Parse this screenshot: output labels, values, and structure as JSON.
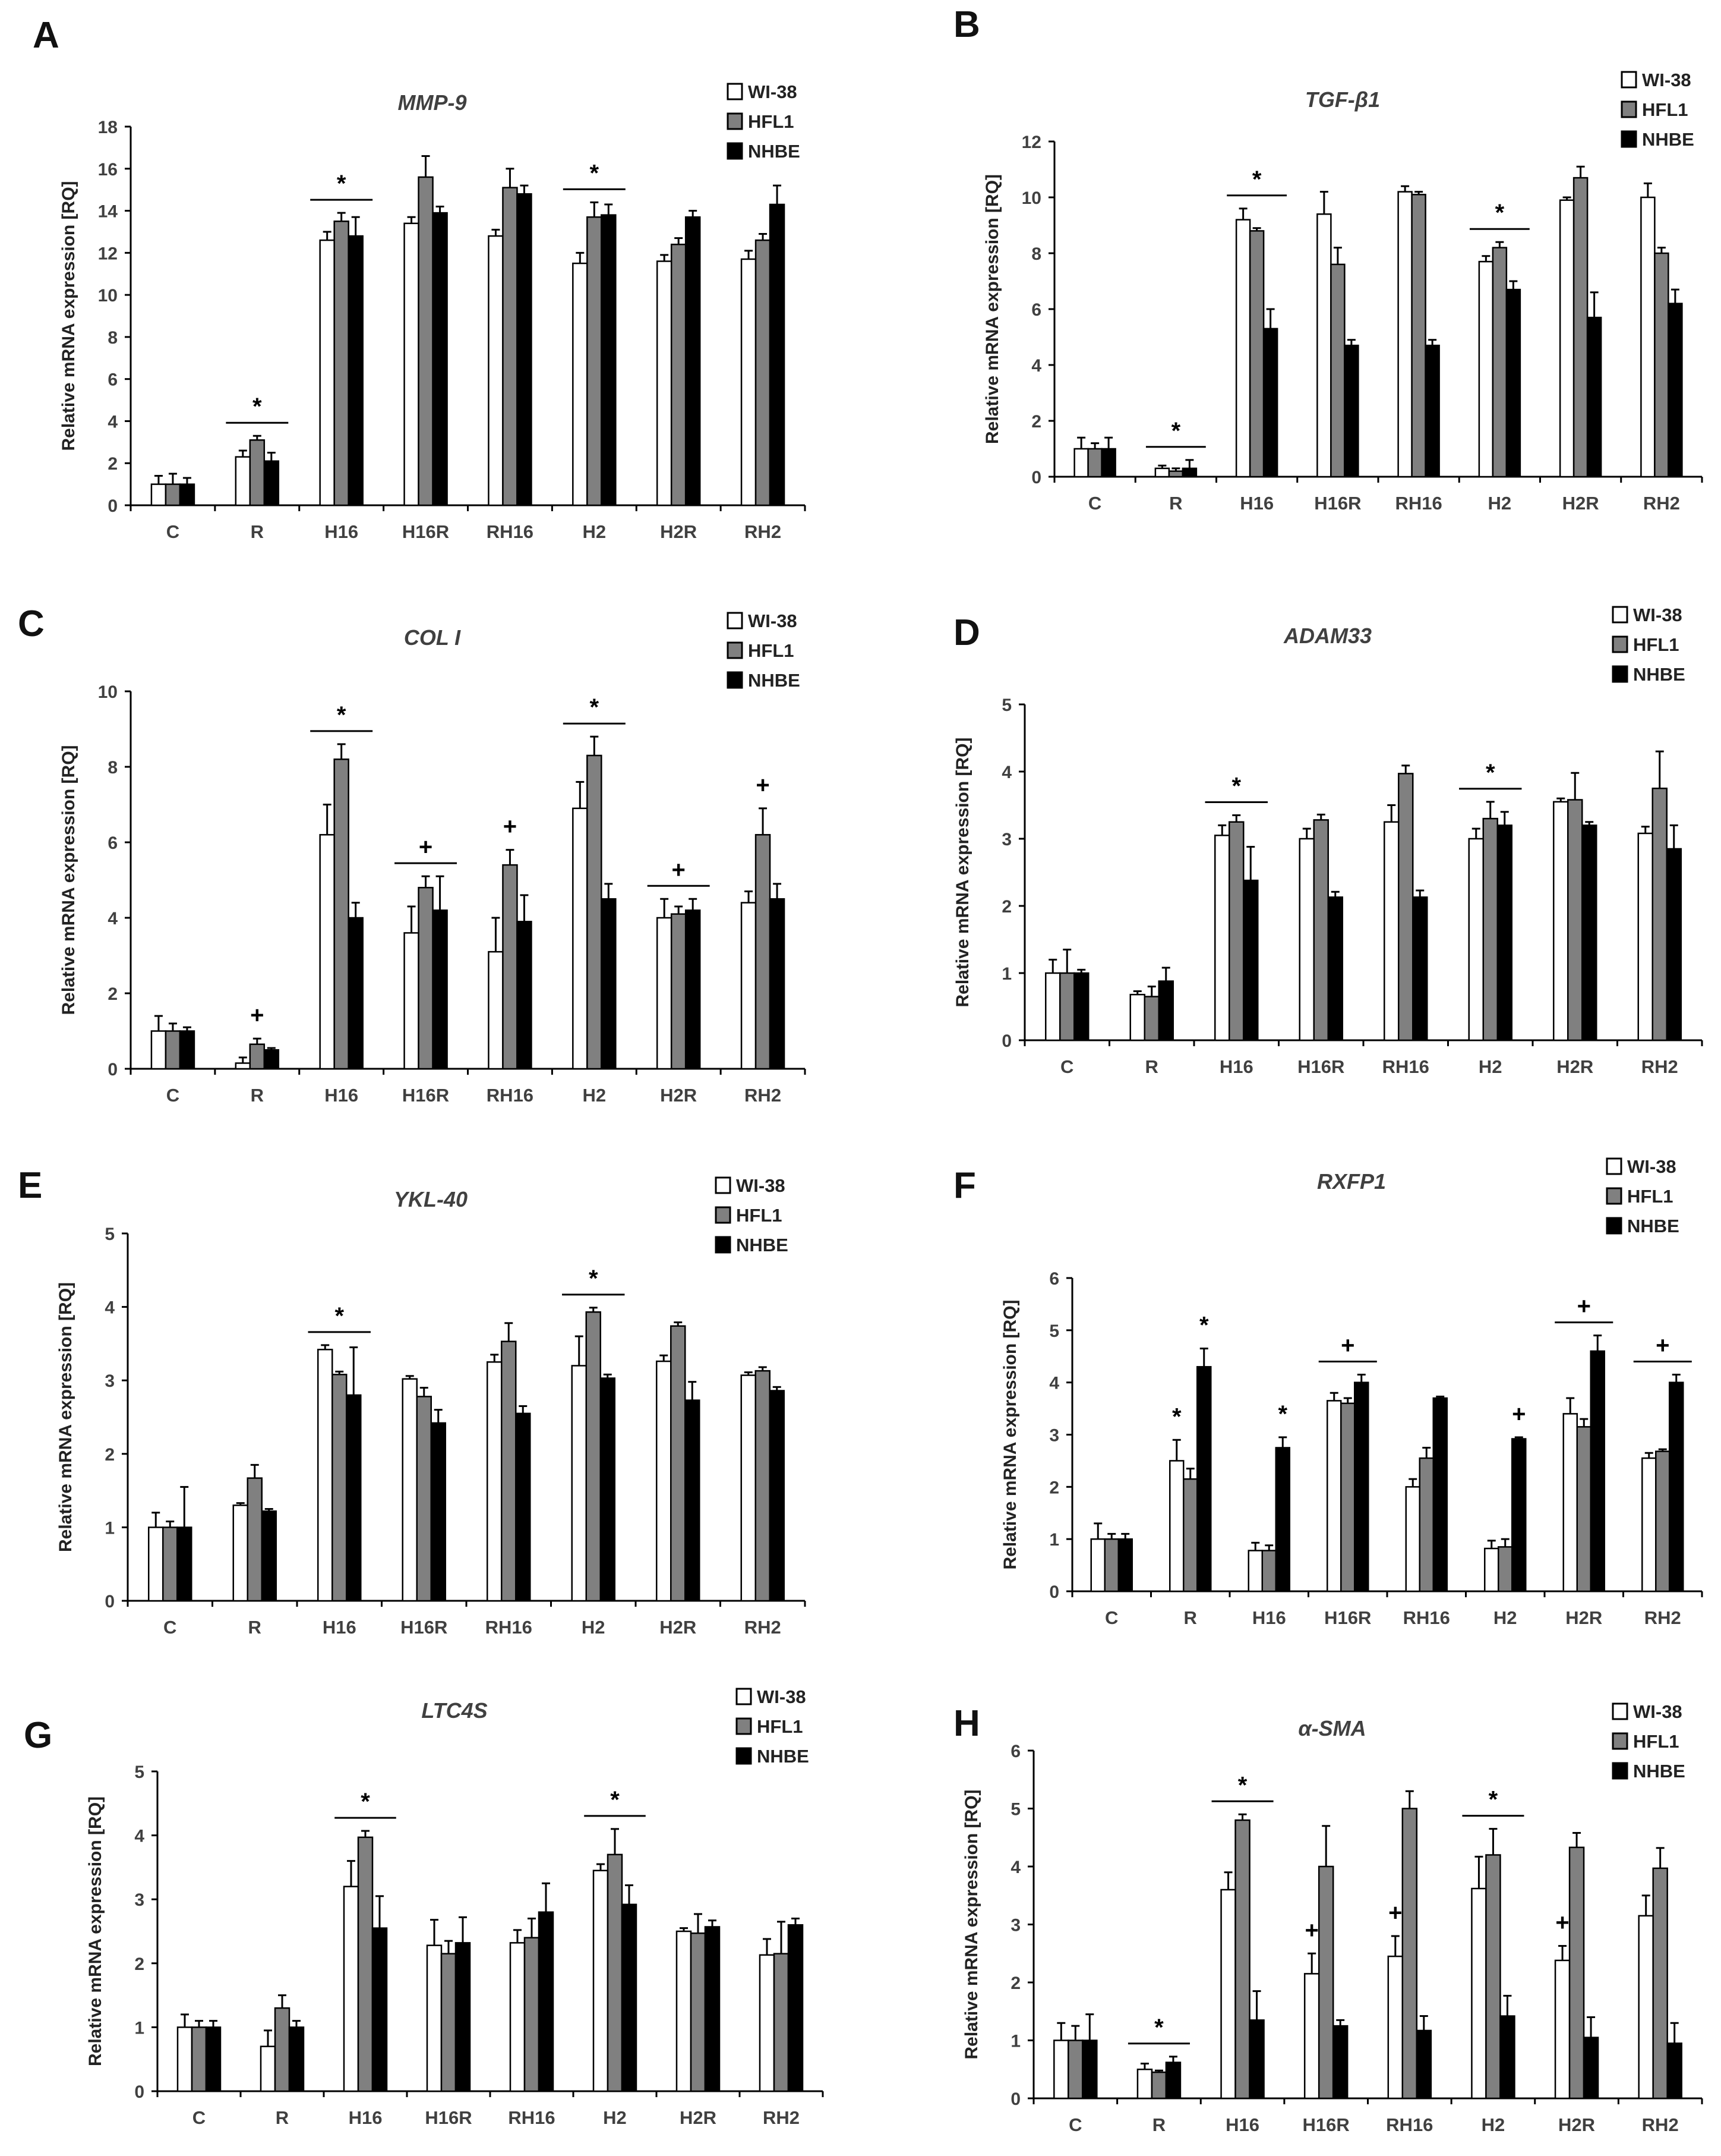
{
  "colors": {
    "WI-38": "#ffffff",
    "HFL1": "#808080",
    "NHBE": "#000000",
    "axis": "#000000",
    "text": "#404040"
  },
  "chart_data": [
    {
      "type": "bar",
      "panel": "A",
      "title": "MMP-9",
      "ylabel": "Relative mRNA expression [RQ]",
      "xlabel": "",
      "ylim": [
        0,
        18
      ],
      "yticks": [
        0,
        2,
        4,
        6,
        8,
        10,
        12,
        14,
        16,
        18
      ],
      "categories": [
        "C",
        "R",
        "H16",
        "H16R",
        "RH16",
        "H2",
        "H2R",
        "RH2"
      ],
      "legend": [
        "WI-38",
        "HFL1",
        "NHBE"
      ],
      "legend_position": "top-right",
      "series": [
        {
          "name": "WI-38",
          "values": [
            1.0,
            2.3,
            12.6,
            13.4,
            12.8,
            11.5,
            11.6,
            11.7
          ],
          "errors": [
            0.4,
            0.3,
            0.4,
            0.3,
            0.3,
            0.5,
            0.3,
            0.4
          ]
        },
        {
          "name": "HFL1",
          "values": [
            1.0,
            3.1,
            13.5,
            15.6,
            15.1,
            13.7,
            12.4,
            12.6
          ],
          "errors": [
            0.5,
            0.2,
            0.4,
            1.0,
            0.9,
            0.7,
            0.3,
            0.3
          ]
        },
        {
          "name": "NHBE",
          "values": [
            1.0,
            2.1,
            12.8,
            13.9,
            14.8,
            13.8,
            13.7,
            14.3
          ],
          "errors": [
            0.3,
            0.4,
            0.9,
            0.3,
            0.4,
            0.5,
            0.3,
            0.9
          ]
        }
      ],
      "annotations": [
        {
          "label": "*",
          "category": "R",
          "bracket": true
        },
        {
          "label": "*",
          "category": "H16",
          "bracket": true
        },
        {
          "label": "*",
          "category": "H2",
          "bracket": true
        }
      ]
    },
    {
      "type": "bar",
      "panel": "B",
      "title": "TGF-β1",
      "ylabel": "Relative mRNA expression [RQ]",
      "xlabel": "",
      "ylim": [
        0,
        12
      ],
      "yticks": [
        0,
        2,
        4,
        6,
        8,
        10,
        12
      ],
      "categories": [
        "C",
        "R",
        "H16",
        "H16R",
        "RH16",
        "H2",
        "H2R",
        "RH2"
      ],
      "legend": [
        "WI-38",
        "HFL1",
        "NHBE"
      ],
      "legend_position": "top-right",
      "series": [
        {
          "name": "WI-38",
          "values": [
            1.0,
            0.3,
            9.2,
            9.4,
            10.2,
            7.7,
            9.9,
            10.0
          ],
          "errors": [
            0.4,
            0.1,
            0.4,
            0.8,
            0.2,
            0.2,
            0.1,
            0.5
          ]
        },
        {
          "name": "HFL1",
          "values": [
            1.0,
            0.2,
            8.8,
            7.6,
            10.1,
            8.2,
            10.7,
            8.0
          ],
          "errors": [
            0.2,
            0.1,
            0.1,
            0.6,
            0.1,
            0.2,
            0.4,
            0.2
          ]
        },
        {
          "name": "NHBE",
          "values": [
            1.0,
            0.3,
            5.3,
            4.7,
            4.7,
            6.7,
            5.7,
            6.2
          ],
          "errors": [
            0.4,
            0.3,
            0.7,
            0.2,
            0.2,
            0.3,
            0.9,
            0.5
          ]
        }
      ],
      "annotations": [
        {
          "label": "*",
          "category": "R",
          "bracket": true
        },
        {
          "label": "*",
          "category": "H16",
          "bracket": true
        },
        {
          "label": "*",
          "category": "H2",
          "bracket": true
        }
      ]
    },
    {
      "type": "bar",
      "panel": "C",
      "title": "COL I",
      "ylabel": "Relative mRNA expression [RQ]",
      "xlabel": "",
      "ylim": [
        0,
        10
      ],
      "yticks": [
        0,
        2,
        4,
        6,
        8,
        10
      ],
      "categories": [
        "C",
        "R",
        "H16",
        "H16R",
        "RH16",
        "H2",
        "H2R",
        "RH2"
      ],
      "legend": [
        "WI-38",
        "HFL1",
        "NHBE"
      ],
      "legend_position": "top-right",
      "series": [
        {
          "name": "WI-38",
          "values": [
            1.0,
            0.15,
            6.2,
            3.6,
            3.1,
            6.9,
            4.0,
            4.4
          ],
          "errors": [
            0.4,
            0.15,
            0.8,
            0.7,
            0.9,
            0.7,
            0.5,
            0.3
          ]
        },
        {
          "name": "HFL1",
          "values": [
            1.0,
            0.65,
            8.2,
            4.8,
            5.4,
            8.3,
            4.1,
            6.2
          ],
          "errors": [
            0.2,
            0.15,
            0.4,
            0.3,
            0.4,
            0.5,
            0.2,
            0.7
          ]
        },
        {
          "name": "NHBE",
          "values": [
            1.0,
            0.5,
            4.0,
            4.2,
            3.9,
            4.5,
            4.2,
            4.5
          ],
          "errors": [
            0.1,
            0.05,
            0.4,
            0.9,
            0.7,
            0.4,
            0.3,
            0.4
          ]
        }
      ],
      "annotations": [
        {
          "label": "+",
          "category": "R",
          "bracket": false
        },
        {
          "label": "*",
          "category": "H16",
          "bracket": true
        },
        {
          "label": "+",
          "category": "H16R",
          "bracket": true
        },
        {
          "label": "+",
          "category": "RH16",
          "bracket": false
        },
        {
          "label": "*",
          "category": "H2",
          "bracket": true
        },
        {
          "label": "+",
          "category": "H2R",
          "bracket": true
        },
        {
          "label": "+",
          "category": "RH2",
          "bracket": false
        }
      ]
    },
    {
      "type": "bar",
      "panel": "D",
      "title": "ADAM33",
      "ylabel": "Relative mRNA expression [RQ]",
      "xlabel": "",
      "ylim": [
        0,
        5
      ],
      "yticks": [
        0,
        1,
        2,
        3,
        4,
        5
      ],
      "categories": [
        "C",
        "R",
        "H16",
        "H16R",
        "RH16",
        "H2",
        "H2R",
        "RH2"
      ],
      "legend": [
        "WI-38",
        "HFL1",
        "NHBE"
      ],
      "legend_position": "top-right",
      "series": [
        {
          "name": "WI-38",
          "values": [
            1.0,
            0.68,
            3.05,
            3.0,
            3.25,
            3.0,
            3.55,
            3.08
          ],
          "errors": [
            0.2,
            0.05,
            0.15,
            0.15,
            0.25,
            0.15,
            0.05,
            0.1
          ]
        },
        {
          "name": "HFL1",
          "values": [
            1.0,
            0.65,
            3.25,
            3.28,
            3.97,
            3.3,
            3.58,
            3.75
          ],
          "errors": [
            0.35,
            0.15,
            0.1,
            0.08,
            0.12,
            0.25,
            0.4,
            0.55
          ]
        },
        {
          "name": "NHBE",
          "values": [
            1.0,
            0.88,
            2.38,
            2.13,
            2.13,
            3.2,
            3.2,
            2.85
          ],
          "errors": [
            0.05,
            0.2,
            0.5,
            0.08,
            0.1,
            0.2,
            0.05,
            0.35
          ]
        }
      ],
      "annotations": [
        {
          "label": "*",
          "category": "H16",
          "bracket": true
        },
        {
          "label": "*",
          "category": "H2",
          "bracket": true
        }
      ]
    },
    {
      "type": "bar",
      "panel": "E",
      "title": "YKL-40",
      "ylabel": "Relative mRNA expression [RQ]",
      "xlabel": "",
      "ylim": [
        0,
        5
      ],
      "yticks": [
        0,
        1,
        2,
        3,
        4,
        5
      ],
      "categories": [
        "C",
        "R",
        "H16",
        "H16R",
        "RH16",
        "H2",
        "H2R",
        "RH2"
      ],
      "legend": [
        "WI-38",
        "HFL1",
        "NHBE"
      ],
      "legend_position": "top-right",
      "series": [
        {
          "name": "WI-38",
          "values": [
            1.0,
            1.3,
            3.42,
            3.02,
            3.25,
            3.2,
            3.26,
            3.07
          ],
          "errors": [
            0.2,
            0.03,
            0.06,
            0.04,
            0.1,
            0.4,
            0.08,
            0.04
          ]
        },
        {
          "name": "HFL1",
          "values": [
            1.0,
            1.67,
            3.08,
            2.78,
            3.53,
            3.93,
            3.74,
            3.13
          ],
          "errors": [
            0.08,
            0.18,
            0.04,
            0.12,
            0.25,
            0.06,
            0.05,
            0.05
          ]
        },
        {
          "name": "NHBE",
          "values": [
            1.0,
            1.22,
            2.8,
            2.42,
            2.55,
            3.03,
            2.73,
            2.86
          ],
          "errors": [
            0.55,
            0.03,
            0.65,
            0.18,
            0.1,
            0.05,
            0.25,
            0.05
          ]
        }
      ],
      "annotations": [
        {
          "label": "*",
          "category": "H16",
          "bracket": true
        },
        {
          "label": "*",
          "category": "H2",
          "bracket": true
        }
      ]
    },
    {
      "type": "bar",
      "panel": "F",
      "title": "RXFP1",
      "ylabel": "Relative mRNA expression [RQ]",
      "xlabel": "",
      "ylim": [
        0,
        6
      ],
      "yticks": [
        0,
        1,
        2,
        3,
        4,
        5,
        6
      ],
      "categories": [
        "C",
        "R",
        "H16",
        "H16R",
        "RH16",
        "H2",
        "H2R",
        "RH2"
      ],
      "legend": [
        "WI-38",
        "HFL1",
        "NHBE"
      ],
      "legend_position": "top-right",
      "series": [
        {
          "name": "WI-38",
          "values": [
            1.0,
            2.5,
            0.78,
            3.65,
            2.0,
            0.82,
            3.4,
            2.55
          ],
          "errors": [
            0.3,
            0.4,
            0.15,
            0.15,
            0.15,
            0.15,
            0.3,
            0.1
          ]
        },
        {
          "name": "HFL1",
          "values": [
            1.0,
            2.15,
            0.78,
            3.6,
            2.55,
            0.85,
            3.15,
            2.68
          ],
          "errors": [
            0.1,
            0.2,
            0.1,
            0.1,
            0.2,
            0.15,
            0.15,
            0.04
          ]
        },
        {
          "name": "NHBE",
          "values": [
            1.0,
            4.3,
            2.75,
            4.0,
            3.7,
            2.92,
            4.6,
            4.0
          ],
          "errors": [
            0.1,
            0.35,
            0.2,
            0.15,
            0.03,
            0.03,
            0.3,
            0.15
          ]
        }
      ],
      "annotations": [
        {
          "label": "*",
          "category": "R",
          "series": "WI-38",
          "bracket": false
        },
        {
          "label": "*",
          "category": "R",
          "series": "NHBE",
          "bracket": false
        },
        {
          "label": "*",
          "category": "H16",
          "series": "NHBE",
          "bracket": false
        },
        {
          "label": "+",
          "category": "H16R",
          "bracket": true
        },
        {
          "label": "+",
          "category": "H2",
          "series": "NHBE",
          "bracket": false
        },
        {
          "label": "+",
          "category": "H2R",
          "bracket": true
        },
        {
          "label": "+",
          "category": "RH2",
          "bracket": true
        }
      ]
    },
    {
      "type": "bar",
      "panel": "G",
      "title": "LTC4S",
      "ylabel": "Relative mRNA expression [RQ]",
      "xlabel": "",
      "ylim": [
        0,
        5
      ],
      "yticks": [
        0,
        1,
        2,
        3,
        4,
        5
      ],
      "categories": [
        "C",
        "R",
        "H16",
        "H16R",
        "RH16",
        "H2",
        "H2R",
        "RH2"
      ],
      "legend": [
        "WI-38",
        "HFL1",
        "NHBE"
      ],
      "legend_position": "top-right",
      "series": [
        {
          "name": "WI-38",
          "values": [
            1.0,
            0.7,
            3.2,
            2.28,
            2.32,
            3.45,
            2.5,
            2.13
          ],
          "errors": [
            0.2,
            0.25,
            0.4,
            0.4,
            0.2,
            0.1,
            0.05,
            0.25
          ]
        },
        {
          "name": "HFL1",
          "values": [
            1.0,
            1.3,
            3.97,
            2.15,
            2.4,
            3.7,
            2.47,
            2.15
          ],
          "errors": [
            0.1,
            0.2,
            0.1,
            0.2,
            0.3,
            0.4,
            0.3,
            0.5
          ]
        },
        {
          "name": "NHBE",
          "values": [
            1.0,
            1.0,
            2.55,
            2.32,
            2.8,
            2.92,
            2.57,
            2.6
          ],
          "errors": [
            0.1,
            0.1,
            0.5,
            0.4,
            0.45,
            0.3,
            0.1,
            0.1
          ]
        }
      ],
      "annotations": [
        {
          "label": "*",
          "category": "H16",
          "bracket": true
        },
        {
          "label": "*",
          "category": "H2",
          "bracket": true
        }
      ]
    },
    {
      "type": "bar",
      "panel": "H",
      "title": "α-SMA",
      "ylabel": "Relative mRNA expression [RQ]",
      "xlabel": "",
      "ylim": [
        0,
        6
      ],
      "yticks": [
        0,
        1,
        2,
        3,
        4,
        5,
        6
      ],
      "categories": [
        "C",
        "R",
        "H16",
        "H16R",
        "RH16",
        "H2",
        "H2R",
        "RH2"
      ],
      "legend": [
        "WI-38",
        "HFL1",
        "NHBE"
      ],
      "legend_position": "top-right",
      "series": [
        {
          "name": "WI-38",
          "values": [
            1.0,
            0.5,
            3.6,
            2.15,
            2.45,
            3.62,
            2.38,
            3.15
          ],
          "errors": [
            0.3,
            0.1,
            0.3,
            0.35,
            0.35,
            0.55,
            0.25,
            0.35
          ]
        },
        {
          "name": "HFL1",
          "values": [
            1.0,
            0.45,
            4.8,
            4.0,
            5.0,
            4.2,
            4.33,
            3.97
          ],
          "errors": [
            0.25,
            0.03,
            0.1,
            0.7,
            0.3,
            0.45,
            0.25,
            0.35
          ]
        },
        {
          "name": "NHBE",
          "values": [
            1.0,
            0.62,
            1.35,
            1.25,
            1.17,
            1.42,
            1.05,
            0.95
          ],
          "errors": [
            0.45,
            0.1,
            0.5,
            0.1,
            0.25,
            0.35,
            0.35,
            0.35
          ]
        }
      ],
      "annotations": [
        {
          "label": "*",
          "category": "R",
          "bracket": true
        },
        {
          "label": "*",
          "category": "H16",
          "bracket": true
        },
        {
          "label": "+",
          "category": "H16R",
          "series": "WI-38",
          "bracket": false
        },
        {
          "label": "+",
          "category": "RH16",
          "series": "WI-38",
          "bracket": false
        },
        {
          "label": "*",
          "category": "H2",
          "bracket": true
        },
        {
          "label": "+",
          "category": "H2R",
          "series": "WI-38",
          "bracket": false
        }
      ]
    }
  ]
}
